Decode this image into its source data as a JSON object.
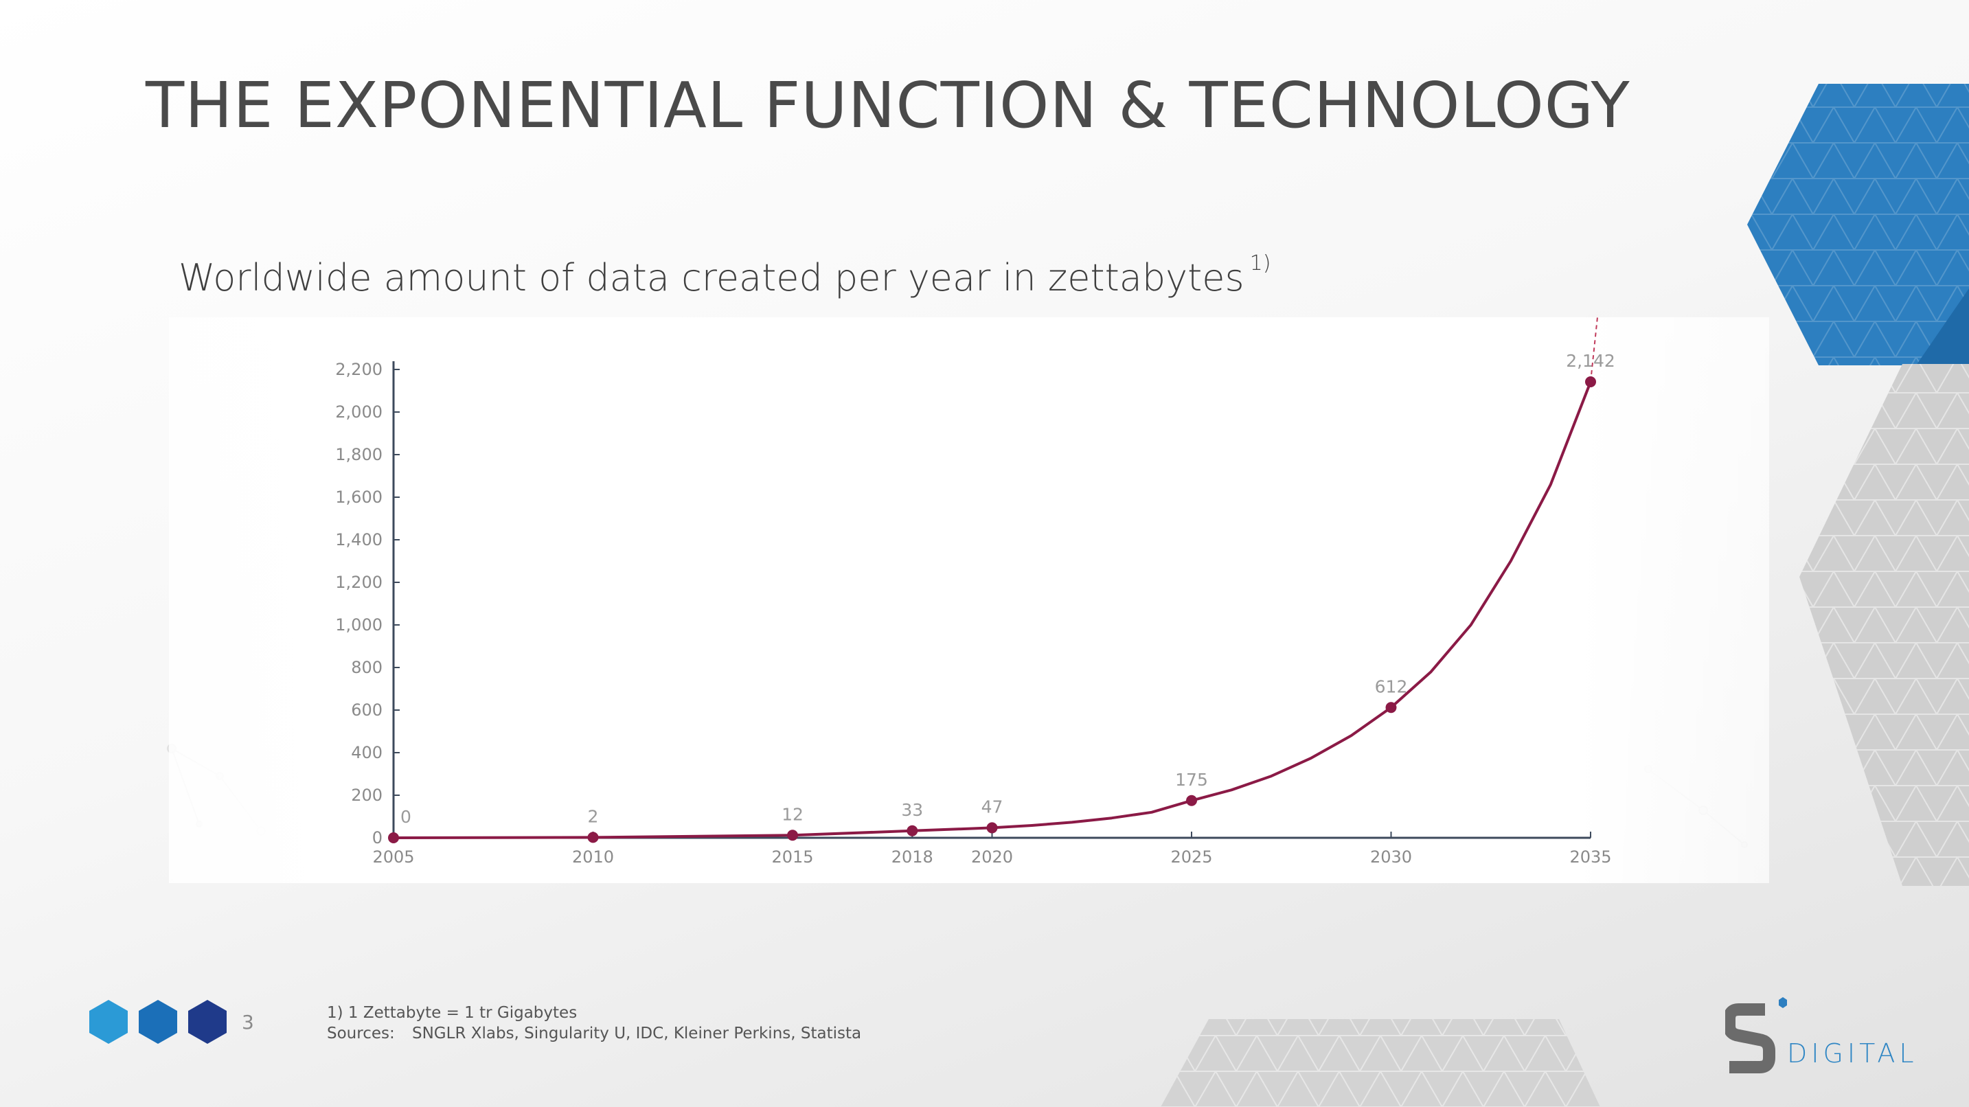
{
  "slide": {
    "title": "THE EXPONENTIAL FUNCTION & TECHNOLOGY",
    "subtitle": "Worldwide amount of data created per year in zettabytes",
    "subtitle_note_marker": "1)",
    "page_number": "3",
    "footnote": "1) 1 Zettabyte = 1 tr Gigabytes",
    "sources_label": "Sources:",
    "sources_text": "SNGLR Xlabs, Singularity U, IDC, Kleiner Perkins, Statista",
    "logo_text": "DIGITAL",
    "logo_letter": "S"
  },
  "colors": {
    "line": "#8b1a46",
    "axis": "#3d4a5c",
    "blue_dark": "#1f3a8a",
    "blue_mid": "#1b6fb8",
    "blue_light": "#2b9ad6",
    "banner_blue": "#2d7fc0",
    "logo_grey": "#6b6b6b"
  },
  "chart_data": {
    "type": "line",
    "title": "",
    "xlabel": "",
    "ylabel": "",
    "x_ticks": [
      2005,
      2010,
      2015,
      2018,
      2020,
      2025,
      2030,
      2035
    ],
    "y_ticks": [
      0,
      200,
      400,
      600,
      800,
      1000,
      1200,
      1400,
      1600,
      1800,
      2000,
      2200
    ],
    "ylim": [
      0,
      2200
    ],
    "xlim": [
      2005,
      2035
    ],
    "grid": false,
    "legend": "none",
    "series": [
      {
        "labeled_points": [
          {
            "x": 2005,
            "y": 0,
            "label": "0"
          },
          {
            "x": 2010,
            "y": 2,
            "label": "2"
          },
          {
            "x": 2015,
            "y": 12,
            "label": "12"
          },
          {
            "x": 2018,
            "y": 33,
            "label": "33"
          },
          {
            "x": 2020,
            "y": 47,
            "label": "47"
          },
          {
            "x": 2025,
            "y": 175,
            "label": "175"
          },
          {
            "x": 2030,
            "y": 612,
            "label": "612"
          },
          {
            "x": 2035,
            "y": 2142,
            "label": "2,142"
          }
        ],
        "curve": [
          [
            2005,
            0
          ],
          [
            2010,
            2
          ],
          [
            2015,
            12
          ],
          [
            2018,
            33
          ],
          [
            2020,
            47
          ],
          [
            2021,
            58
          ],
          [
            2022,
            73
          ],
          [
            2023,
            93
          ],
          [
            2024,
            120
          ],
          [
            2025,
            175
          ],
          [
            2026,
            225
          ],
          [
            2027,
            290
          ],
          [
            2028,
            375
          ],
          [
            2029,
            480
          ],
          [
            2030,
            612
          ],
          [
            2031,
            780
          ],
          [
            2032,
            1000
          ],
          [
            2033,
            1300
          ],
          [
            2034,
            1660
          ],
          [
            2035,
            2142
          ]
        ],
        "extrapolation_dashed": [
          [
            2035,
            2142
          ],
          [
            2035.6,
            3200
          ]
        ]
      }
    ]
  }
}
